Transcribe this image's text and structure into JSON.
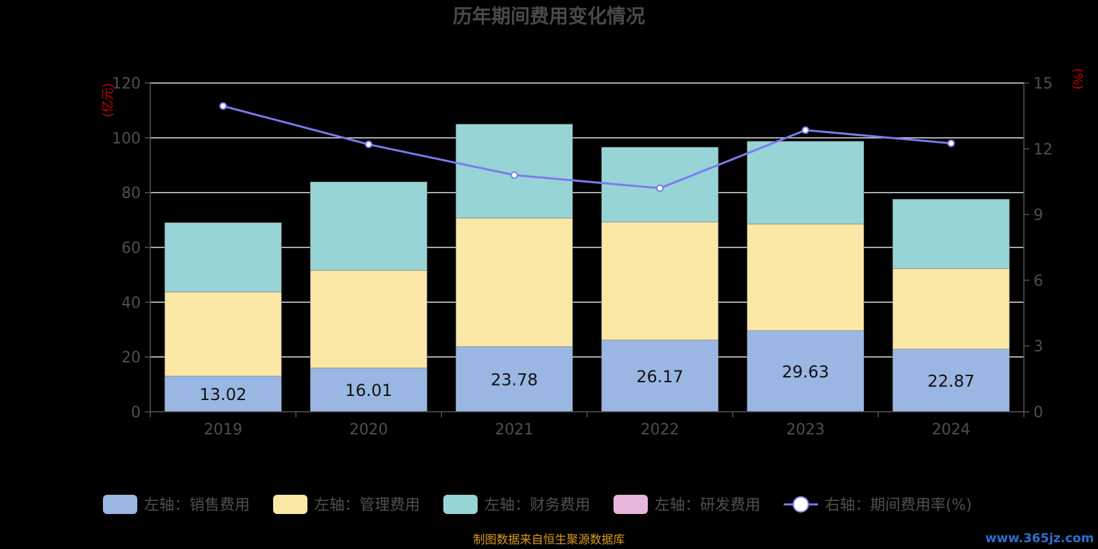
{
  "chart_data": {
    "type": "bar",
    "title": "历年期间费用变化情况",
    "categories": [
      "2019",
      "2020",
      "2021",
      "2022",
      "2023",
      "2024"
    ],
    "left_axis": {
      "unit_label": "(亿元)",
      "ylim": [
        0,
        120
      ],
      "ticks": [
        "0",
        "20",
        "40",
        "60",
        "80",
        "100",
        "120"
      ]
    },
    "right_axis": {
      "unit_label": "(%)",
      "ylim": [
        0,
        15
      ],
      "ticks": [
        "0",
        "3",
        "6",
        "9",
        "12",
        "15"
      ]
    },
    "series": [
      {
        "name": "左轴：销售费用",
        "type": "bar",
        "stack": true,
        "color": "#9ab7e3",
        "values": [
          13.02,
          16.01,
          23.78,
          26.17,
          29.63,
          22.87
        ],
        "labels": [
          "13.02",
          "16.01",
          "23.78",
          "26.17",
          "29.63",
          "22.87"
        ]
      },
      {
        "name": "左轴：管理费用",
        "type": "bar",
        "stack": true,
        "color": "#fbe7a6",
        "values": [
          30.7,
          35.6,
          46.9,
          43.1,
          38.9,
          29.4
        ]
      },
      {
        "name": "左轴：财务费用",
        "type": "bar",
        "stack": true,
        "color": "#97d4d6",
        "values": [
          25.3,
          32.3,
          34.3,
          27.3,
          30.2,
          25.3
        ]
      },
      {
        "name": "左轴：研发费用",
        "type": "bar",
        "stack": true,
        "color": "#e8b6dc",
        "values": [
          0,
          0,
          0,
          0,
          0,
          0
        ]
      },
      {
        "name": "右轴：期间费用率(%)",
        "type": "line",
        "axis": "right",
        "color": "#7b7bf0",
        "values": [
          13.95,
          12.2,
          10.8,
          10.2,
          12.85,
          12.25
        ]
      }
    ],
    "grid": true,
    "legend": "bottom"
  },
  "footer": {
    "source": "制图数据来自恒生聚源数据库",
    "watermark": "www.365jz.com"
  }
}
